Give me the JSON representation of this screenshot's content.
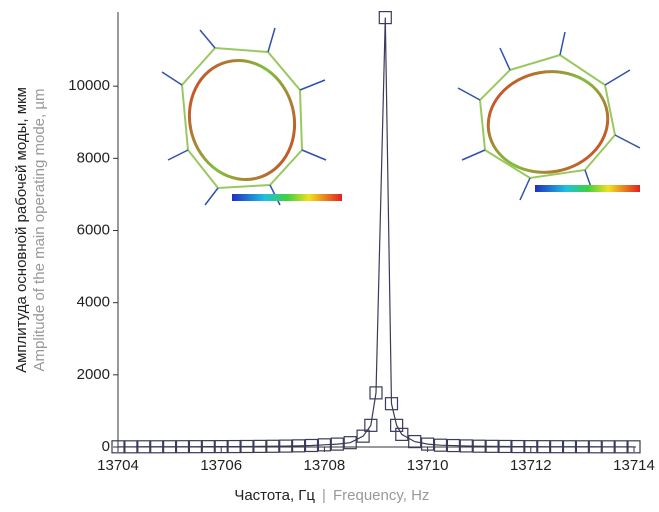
{
  "chart_data": {
    "type": "line",
    "xlabel": "Частота, Гц",
    "xlabel_separator": "|",
    "xlabel_en": "Frequency, Hz",
    "ylabel": "Амплитуда основной рабочей моды, мкм",
    "ylabel_en": "Amplitude of the main operating mode, µm",
    "xlim": [
      13704,
      13714
    ],
    "xticks": [
      13704,
      13706,
      13708,
      13710,
      13712,
      13714
    ],
    "ylim": [
      0,
      12000
    ],
    "yticks": [
      0,
      2000,
      4000,
      6000,
      8000,
      10000
    ],
    "series": [
      {
        "color": "#3a3a5a",
        "x": [
          13704,
          13704.25,
          13704.5,
          13704.75,
          13705,
          13705.25,
          13705.5,
          13705.75,
          13706,
          13706.25,
          13706.5,
          13706.75,
          13707,
          13707.25,
          13707.5,
          13707.75,
          13708,
          13708.25,
          13708.5,
          13708.75,
          13708.9,
          13709,
          13709.18,
          13709.3,
          13709.4,
          13709.5,
          13709.75,
          13710,
          13710.25,
          13710.5,
          13710.75,
          13711,
          13711.25,
          13711.5,
          13711.75,
          13712,
          13712.25,
          13712.5,
          13712.75,
          13713,
          13713.25,
          13713.5,
          13713.75,
          13714
        ],
        "values": [
          5,
          5,
          6,
          6,
          7,
          8,
          9,
          10,
          11,
          12,
          14,
          17,
          20,
          25,
          32,
          42,
          60,
          80,
          120,
          300,
          600,
          1500,
          11900,
          1200,
          600,
          350,
          150,
          80,
          50,
          40,
          30,
          22,
          18,
          15,
          12,
          10,
          9,
          8,
          7,
          6,
          6,
          5,
          5,
          5
        ]
      }
    ]
  }
}
